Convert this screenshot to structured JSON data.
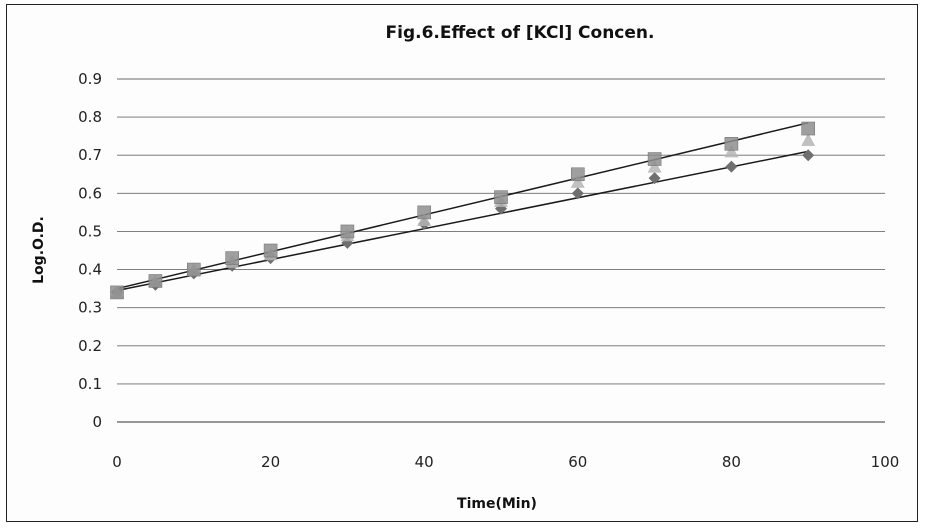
{
  "chart_data": {
    "type": "scatter",
    "title": "Fig.6.Effect of [KCl] Concen.",
    "xlabel": "Time(Min)",
    "ylabel": "Log.O.D.",
    "xlim": [
      0,
      100
    ],
    "ylim": [
      0,
      0.9
    ],
    "xticks": [
      0,
      20,
      40,
      60,
      80,
      100
    ],
    "yticks": [
      0,
      0.1,
      0.2,
      0.3,
      0.4,
      0.5,
      0.6,
      0.7,
      0.8,
      0.9
    ],
    "grid": "horizontal",
    "legend": "none",
    "series": [
      {
        "marker": "diamond",
        "color": "#6f6f6f",
        "x": [
          0,
          5,
          10,
          15,
          20,
          30,
          40,
          50,
          60,
          70,
          80,
          90
        ],
        "y": [
          0.34,
          0.36,
          0.39,
          0.41,
          0.43,
          0.47,
          0.52,
          0.56,
          0.6,
          0.64,
          0.67,
          0.7
        ],
        "trendline": [
          [
            0,
            0.345
          ],
          [
            90,
            0.71
          ]
        ]
      },
      {
        "marker": "triangle",
        "color": "#b5b5b5",
        "x": [
          0,
          5,
          10,
          15,
          20,
          30,
          40,
          50,
          60,
          70,
          80,
          90
        ],
        "y": [
          0.34,
          0.37,
          0.4,
          0.42,
          0.44,
          0.49,
          0.53,
          0.58,
          0.63,
          0.67,
          0.71,
          0.74
        ]
      },
      {
        "marker": "square",
        "color": "#8e8e8e",
        "x": [
          0,
          5,
          10,
          15,
          20,
          30,
          40,
          50,
          60,
          70,
          80,
          90
        ],
        "y": [
          0.34,
          0.37,
          0.4,
          0.43,
          0.45,
          0.5,
          0.55,
          0.59,
          0.65,
          0.69,
          0.73,
          0.77
        ],
        "trendline": [
          [
            0,
            0.35
          ],
          [
            90,
            0.785
          ]
        ]
      }
    ]
  }
}
